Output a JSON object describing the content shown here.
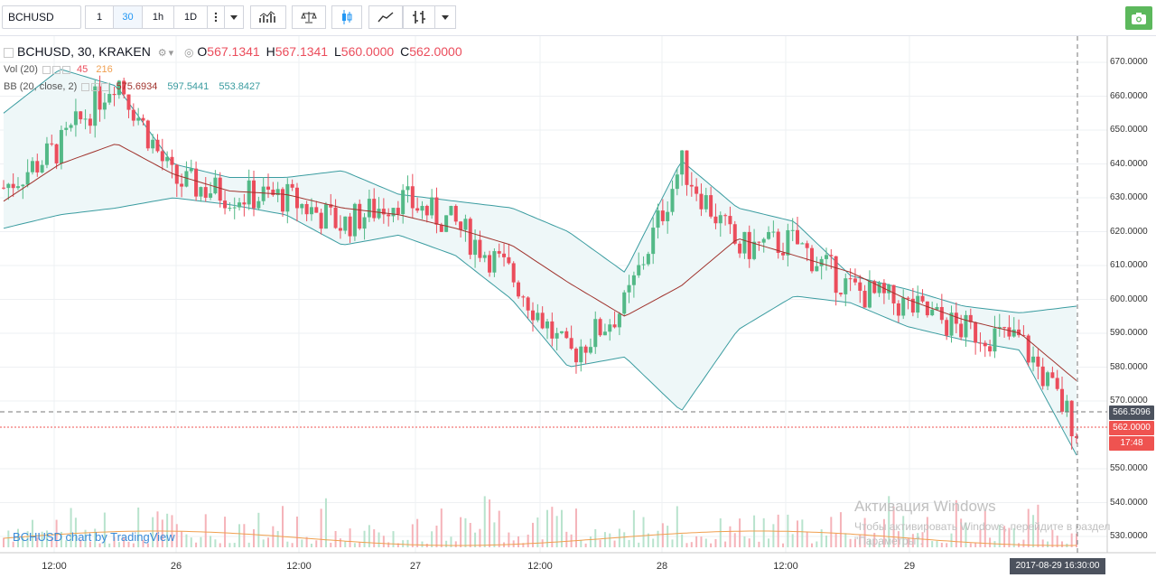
{
  "toolbar": {
    "symbol": "BCHUSD",
    "intervals": [
      "1",
      "30",
      "1h",
      "1D"
    ],
    "active_interval": "30"
  },
  "legend": {
    "title": "BCHUSD, 30, KRAKEN",
    "open_label": "O",
    "open": "567.1341",
    "high_label": "H",
    "high": "567.1341",
    "low_label": "L",
    "low": "560.0000",
    "close_label": "C",
    "close": "562.0000",
    "vol_label": "Vol (20)",
    "vol_value1": "45",
    "vol_value2": "216",
    "bb_label": "BB (20, close, 2)",
    "bb_basis": "575.6934",
    "bb_upper": "597.5441",
    "bb_lower": "553.8427"
  },
  "price_axis": {
    "ticks": [
      "670.0000",
      "660.0000",
      "650.0000",
      "640.0000",
      "630.0000",
      "620.0000",
      "610.0000",
      "600.0000",
      "590.0000",
      "580.0000",
      "570.0000",
      "550.0000",
      "540.0000",
      "530.0000"
    ],
    "crosshair_price": "566.5096",
    "last_price": "562.0000",
    "countdown": "17:48"
  },
  "time_axis": {
    "ticks": [
      "12:00",
      "26",
      "12:00",
      "27",
      "12:00",
      "28",
      "12:00",
      "29"
    ],
    "crosshair_time": "2017-08-29 16:30:00"
  },
  "credit": "BCHUSD chart by TradingView",
  "os_overlay": {
    "title": "Активация Windows",
    "subtitle": "Чтобы активировать Windows, перейдите в раздел \"Параметры\"."
  },
  "colors": {
    "up": "#53b987",
    "down": "#eb4d5c",
    "bb_basis": "#a0332d",
    "bb_band": "#3a9ca0",
    "bb_fill": "#eef7f8",
    "volume_ma": "#f0a050",
    "last_price_bg": "#ef5350",
    "crosshair_bg": "#4c525e",
    "countdown_bg": "#ef5350"
  },
  "chart_data": {
    "type": "candlestick",
    "price_ylim": [
      525,
      675
    ],
    "x_days": [
      "25",
      "26",
      "27",
      "28",
      "29"
    ],
    "price_points": [
      {
        "t": "08-25 06:00",
        "close": 633
      },
      {
        "t": "08-25 12:00",
        "close": 645
      },
      {
        "t": "08-25 14:30",
        "close": 666
      },
      {
        "t": "08-26 00:00",
        "close": 635
      },
      {
        "t": "08-26 06:00",
        "close": 631
      },
      {
        "t": "08-26 12:00",
        "close": 630
      },
      {
        "t": "08-26 18:00",
        "close": 622
      },
      {
        "t": "08-27 00:00",
        "close": 630
      },
      {
        "t": "08-27 06:00",
        "close": 622
      },
      {
        "t": "08-27 12:00",
        "close": 607
      },
      {
        "t": "08-27 18:00",
        "close": 583
      },
      {
        "t": "08-27 21:00",
        "close": 598
      },
      {
        "t": "08-28 00:00",
        "close": 640
      },
      {
        "t": "08-28 06:00",
        "close": 615
      },
      {
        "t": "08-28 12:00",
        "close": 617
      },
      {
        "t": "08-28 18:00",
        "close": 603
      },
      {
        "t": "08-29 00:00",
        "close": 598
      },
      {
        "t": "08-29 06:00",
        "close": 591
      },
      {
        "t": "08-29 12:00",
        "close": 588
      },
      {
        "t": "08-29 16:30",
        "close": 562
      }
    ],
    "bb_basis": [
      629,
      640,
      646,
      637,
      632,
      631,
      627,
      625,
      621,
      616,
      605,
      595,
      604,
      618,
      613,
      608,
      600,
      594,
      590,
      576
    ],
    "bb_upper": [
      655,
      668,
      663,
      640,
      636,
      636,
      638,
      631,
      629,
      627,
      620,
      608,
      641,
      627,
      623,
      607,
      603,
      598,
      596,
      598
    ],
    "bb_lower": [
      621,
      625,
      627,
      630,
      628,
      625,
      616,
      619,
      613,
      600,
      580,
      583,
      567,
      591,
      601,
      599,
      592,
      588,
      585,
      554
    ]
  }
}
